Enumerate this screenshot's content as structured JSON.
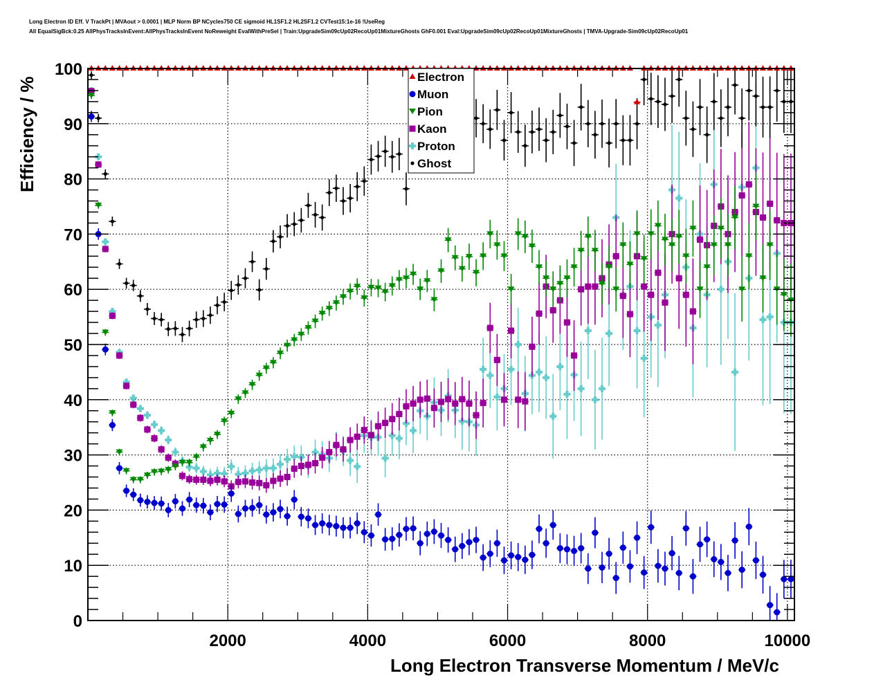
{
  "title_lines": [
    "Long Electron ID Eff. V TrackPt | MVAout > 0.0001 | MLP Norm BP NCycles750 CE sigmoid HL1SF1.2 HL2SF1.2 CVTest15:1e-16 !UseReg",
    "All EqualSigBck:0.25 AllPhysTracksInEvent:AllPhysTracksInEvent NoReweight EvalWithPreSel | Train:UpgradeSim09cUp02RecoUp01MixtureGhosts GhF0.001 Eval:UpgradeSim09cUp02RecoUp01MixtureGhosts | TMVA-Upgrade-Sim09cUp02RecoUp01"
  ],
  "chart_data": {
    "type": "scatter",
    "title": "Long Electron ID Eff. V TrackPt | MVAout > 0.0001 | MLP Norm BP NCycles750 CE sigmoid HL1SF1.2 HL2SF1.2 CVTest15:1e-16 !UseReg",
    "xlabel": "Long Electron Transverse Momentum / MeV/c",
    "ylabel": "Efficiency / %",
    "xlim": [
      0,
      10100
    ],
    "ylim": [
      0,
      100
    ],
    "x_ticks": [
      2000,
      4000,
      6000,
      8000,
      10000
    ],
    "x_tick_labels": [
      "2000",
      "4000",
      "6000",
      "8000",
      "10000"
    ],
    "y_ticks": [
      0,
      10,
      20,
      30,
      40,
      50,
      60,
      70,
      80,
      90,
      100
    ],
    "y_tick_labels": [
      "0",
      "10",
      "20",
      "30",
      "40",
      "50",
      "60",
      "70",
      "80",
      "90",
      "100"
    ],
    "grid": true,
    "legend_position": "top-center",
    "x": [
      50,
      150,
      250,
      350,
      450,
      550,
      650,
      750,
      850,
      950,
      1050,
      1150,
      1250,
      1350,
      1450,
      1550,
      1650,
      1750,
      1850,
      1950,
      2050,
      2150,
      2250,
      2350,
      2450,
      2550,
      2650,
      2750,
      2850,
      2950,
      3050,
      3150,
      3250,
      3350,
      3450,
      3550,
      3650,
      3750,
      3850,
      3950,
      4050,
      4150,
      4250,
      4350,
      4450,
      4550,
      4650,
      4750,
      4850,
      4950,
      5050,
      5150,
      5250,
      5350,
      5450,
      5550,
      5650,
      5750,
      5850,
      5950,
      6050,
      6150,
      6250,
      6350,
      6450,
      6550,
      6650,
      6750,
      6850,
      6950,
      7050,
      7150,
      7250,
      7350,
      7450,
      7550,
      7650,
      7750,
      7850,
      7950,
      8050,
      8150,
      8250,
      8350,
      8450,
      8550,
      8650,
      8750,
      8850,
      8950,
      9050,
      9150,
      9250,
      9350,
      9450,
      9550,
      9650,
      9750,
      9850,
      9950,
      10050
    ],
    "series": [
      {
        "name": "Electron",
        "color": "#cc0000",
        "marker": "triangle-up",
        "values": [
          100,
          100,
          100,
          100,
          100,
          100,
          100,
          100,
          100,
          100,
          100,
          100,
          100,
          100,
          100,
          100,
          100,
          100,
          100,
          100,
          100,
          100,
          100,
          100,
          100,
          100,
          100,
          100,
          100,
          100,
          100,
          100,
          100,
          100,
          100,
          100,
          100,
          100,
          100,
          100,
          100,
          100,
          100,
          100,
          100,
          100,
          100,
          100,
          100,
          100,
          100,
          100,
          100,
          100,
          100,
          100,
          100,
          100,
          100,
          100,
          100,
          100,
          100,
          100,
          100,
          100,
          100,
          100,
          100,
          100,
          100,
          100,
          100,
          100,
          100,
          100,
          100,
          100,
          93.9,
          100,
          100,
          100,
          100,
          100,
          100,
          100,
          100,
          100,
          100,
          100,
          100,
          100,
          100,
          100,
          100,
          100,
          100,
          100,
          100,
          100,
          100
        ]
      },
      {
        "name": "Muon",
        "color": "#0000cc",
        "marker": "circle",
        "values": [
          91.3,
          70.0,
          49.1,
          35.4,
          27.6,
          23.5,
          22.8,
          21.8,
          21.5,
          21.3,
          21.2,
          20.0,
          21.6,
          20.3,
          21.9,
          20.9,
          20.8,
          19.6,
          21.1,
          21.0,
          23.0,
          19.3,
          20.3,
          20.4,
          20.9,
          19.2,
          19.6,
          20.2,
          18.9,
          21.9,
          18.8,
          18.5,
          17.3,
          17.6,
          17.3,
          17.1,
          16.8,
          16.8,
          17.6,
          16.0,
          15.4,
          19.2,
          14.7,
          14.8,
          15.5,
          16.6,
          16.7,
          14.0,
          15.7,
          16.1,
          15.4,
          14.6,
          12.9,
          13.5,
          14.2,
          14.6,
          11.4,
          12.1,
          14.0,
          10.9,
          11.8,
          11.5,
          11.0,
          11.9,
          16.6,
          14.0,
          17.3,
          13.1,
          12.9,
          12.6,
          13.1,
          9.4,
          15.9,
          9.6,
          12.1,
          7.7,
          13.2,
          9.8,
          15.0,
          8.7,
          16.9,
          9.9,
          9.4,
          12.2,
          8.6,
          16.7,
          8.0,
          13.8,
          14.7,
          11.1,
          10.6,
          8.6,
          14.5,
          9.2,
          17.0,
          10.9,
          8.3,
          2.8,
          1.5,
          7.5,
          7.5
        ]
      },
      {
        "name": "Pion",
        "color": "#008800",
        "marker": "triangle-down",
        "values": [
          95.1,
          75.2,
          52.2,
          37.6,
          30.5,
          27.1,
          25.5,
          25.5,
          26.3,
          26.9,
          27.0,
          27.3,
          27.9,
          28.6,
          28.6,
          29.6,
          31.4,
          32.6,
          33.7,
          36.1,
          37.5,
          40.1,
          41.2,
          42.7,
          44.4,
          45.7,
          46.7,
          48.4,
          49.8,
          50.8,
          51.8,
          53.0,
          54.2,
          55.6,
          56.5,
          57.5,
          58.6,
          59.6,
          60.5,
          58.4,
          60.3,
          60.2,
          59.5,
          60.6,
          61.7,
          62.0,
          62.7,
          60.0,
          61.5,
          58.1,
          63.3,
          68.9,
          65.7,
          63.7,
          65.9,
          63.0,
          66.0,
          70.0,
          68.0,
          66.0,
          60.0,
          70.0,
          69.5,
          67.8,
          64.0,
          62.0,
          60.0,
          61.0,
          62.0,
          64.0,
          67.0,
          69.5,
          67.0,
          61.0,
          64.0,
          60.0,
          68.0,
          64.5,
          70.0,
          65.5,
          70.0,
          71.5,
          69.0,
          68.0,
          69.5,
          66.0,
          71.0,
          60.0,
          64.0,
          68.0,
          71.0,
          68.0,
          73.0,
          60.0,
          66.0,
          75.0,
          62.0,
          68.0,
          60.0,
          59.0,
          58.0
        ]
      },
      {
        "name": "Kaon",
        "color": "#990099",
        "marker": "square",
        "values": [
          95.9,
          82.6,
          67.3,
          55.2,
          48.0,
          42.5,
          39.1,
          36.7,
          34.6,
          33.0,
          31.0,
          29.5,
          28.4,
          26.2,
          25.6,
          25.5,
          25.5,
          25.3,
          25.5,
          25.2,
          24.3,
          25.1,
          25.2,
          25.0,
          24.9,
          24.5,
          25.3,
          25.7,
          26.0,
          27.5,
          28.0,
          28.2,
          28.5,
          29.5,
          30.5,
          31.8,
          31.0,
          32.7,
          33.3,
          34.5,
          33.6,
          35.2,
          35.8,
          36.5,
          37.4,
          38.8,
          39.3,
          40.0,
          40.2,
          38.5,
          39.6,
          40.1,
          39.3,
          40.1,
          39.3,
          37.2,
          39.4,
          53.0,
          47.2,
          40.0,
          52.5,
          40.0,
          39.7,
          49.6,
          55.6,
          60.5,
          56.2,
          58.0,
          54.0,
          48.0,
          60.0,
          60.5,
          60.5,
          62.0,
          64.5,
          66.0,
          58.8,
          55.5,
          66.0,
          60.5,
          59.0,
          63.0,
          57.6,
          70.0,
          62.0,
          59.0,
          56.0,
          69.0,
          68.0,
          71.5,
          75.0,
          70.0,
          74.0,
          77.0,
          79.0,
          74.0,
          73.0,
          75.5,
          72.5,
          72.0,
          72.0
        ]
      },
      {
        "name": "Proton",
        "color": "#66cccc",
        "marker": "cross",
        "values": [
          96.0,
          84.0,
          68.6,
          56.0,
          48.6,
          43.2,
          40.3,
          38.4,
          37.2,
          35.5,
          34.4,
          32.7,
          30.5,
          28.9,
          27.8,
          27.6,
          27.0,
          26.4,
          26.7,
          26.6,
          27.9,
          26.5,
          26.7,
          27.1,
          27.3,
          27.6,
          27.6,
          28.3,
          29.2,
          29.7,
          29.6,
          28.0,
          30.5,
          30.1,
          29.4,
          31.6,
          30.7,
          29.0,
          27.9,
          33.5,
          33.2,
          33.2,
          29.4,
          33.5,
          33.0,
          35.7,
          34.4,
          38.0,
          37.0,
          39.5,
          38.1,
          40.7,
          38.1,
          36.1,
          36.0,
          35.4,
          45.5,
          44.4,
          40.5,
          42.0,
          45.5,
          50.0,
          41.1,
          44.4,
          45.0,
          44.0,
          37.0,
          46.0,
          41.0,
          44.5,
          42.0,
          52.5,
          40.0,
          42.0,
          52.0,
          73.0,
          59.0,
          60.5,
          52.5,
          47.5,
          55.0,
          53.5,
          59.0,
          78.0,
          76.5,
          64.0,
          53.0,
          70.0,
          59.0,
          79.0,
          60.0,
          65.0,
          45.0,
          78.5,
          62.0,
          82.0,
          54.5,
          55.0,
          66.5,
          54.0,
          54.0
        ]
      },
      {
        "name": "Ghost",
        "color": "#000000",
        "marker": "diamond-small",
        "values": [
          98.8,
          91.0,
          80.9,
          72.3,
          64.6,
          61.1,
          60.7,
          58.8,
          56.4,
          54.7,
          54.5,
          52.8,
          52.9,
          51.8,
          52.9,
          54.5,
          54.7,
          55.3,
          57.1,
          57.7,
          59.8,
          60.8,
          62.0,
          65.0,
          59.9,
          63.7,
          68.7,
          69.5,
          71.5,
          71.8,
          72.5,
          75.2,
          73.5,
          73.0,
          77.5,
          78.3,
          76.0,
          76.5,
          78.6,
          79.6,
          83.5,
          84.1,
          85.0,
          84.0,
          84.5,
          78.2,
          88.0,
          88.5,
          88.5,
          87.8,
          88.6,
          87.6,
          87.5,
          87.5,
          92.0,
          91.0,
          90.0,
          89.0,
          92.5,
          87.0,
          92.0,
          88.5,
          86.0,
          88.5,
          89.0,
          87.0,
          88.5,
          91.5,
          89.5,
          86.5,
          93.0,
          90.0,
          88.0,
          90.0,
          86.5,
          90.0,
          87.0,
          87.0,
          90.0,
          98.0,
          94.5,
          94.0,
          93.5,
          95.0,
          98.0,
          91.0,
          89.0,
          93.0,
          88.0,
          94.0,
          91.0,
          93.0,
          97.0,
          91.0,
          96.0,
          95.0,
          93.0,
          93.0,
          96.0,
          94.0,
          94.0
        ]
      }
    ]
  }
}
